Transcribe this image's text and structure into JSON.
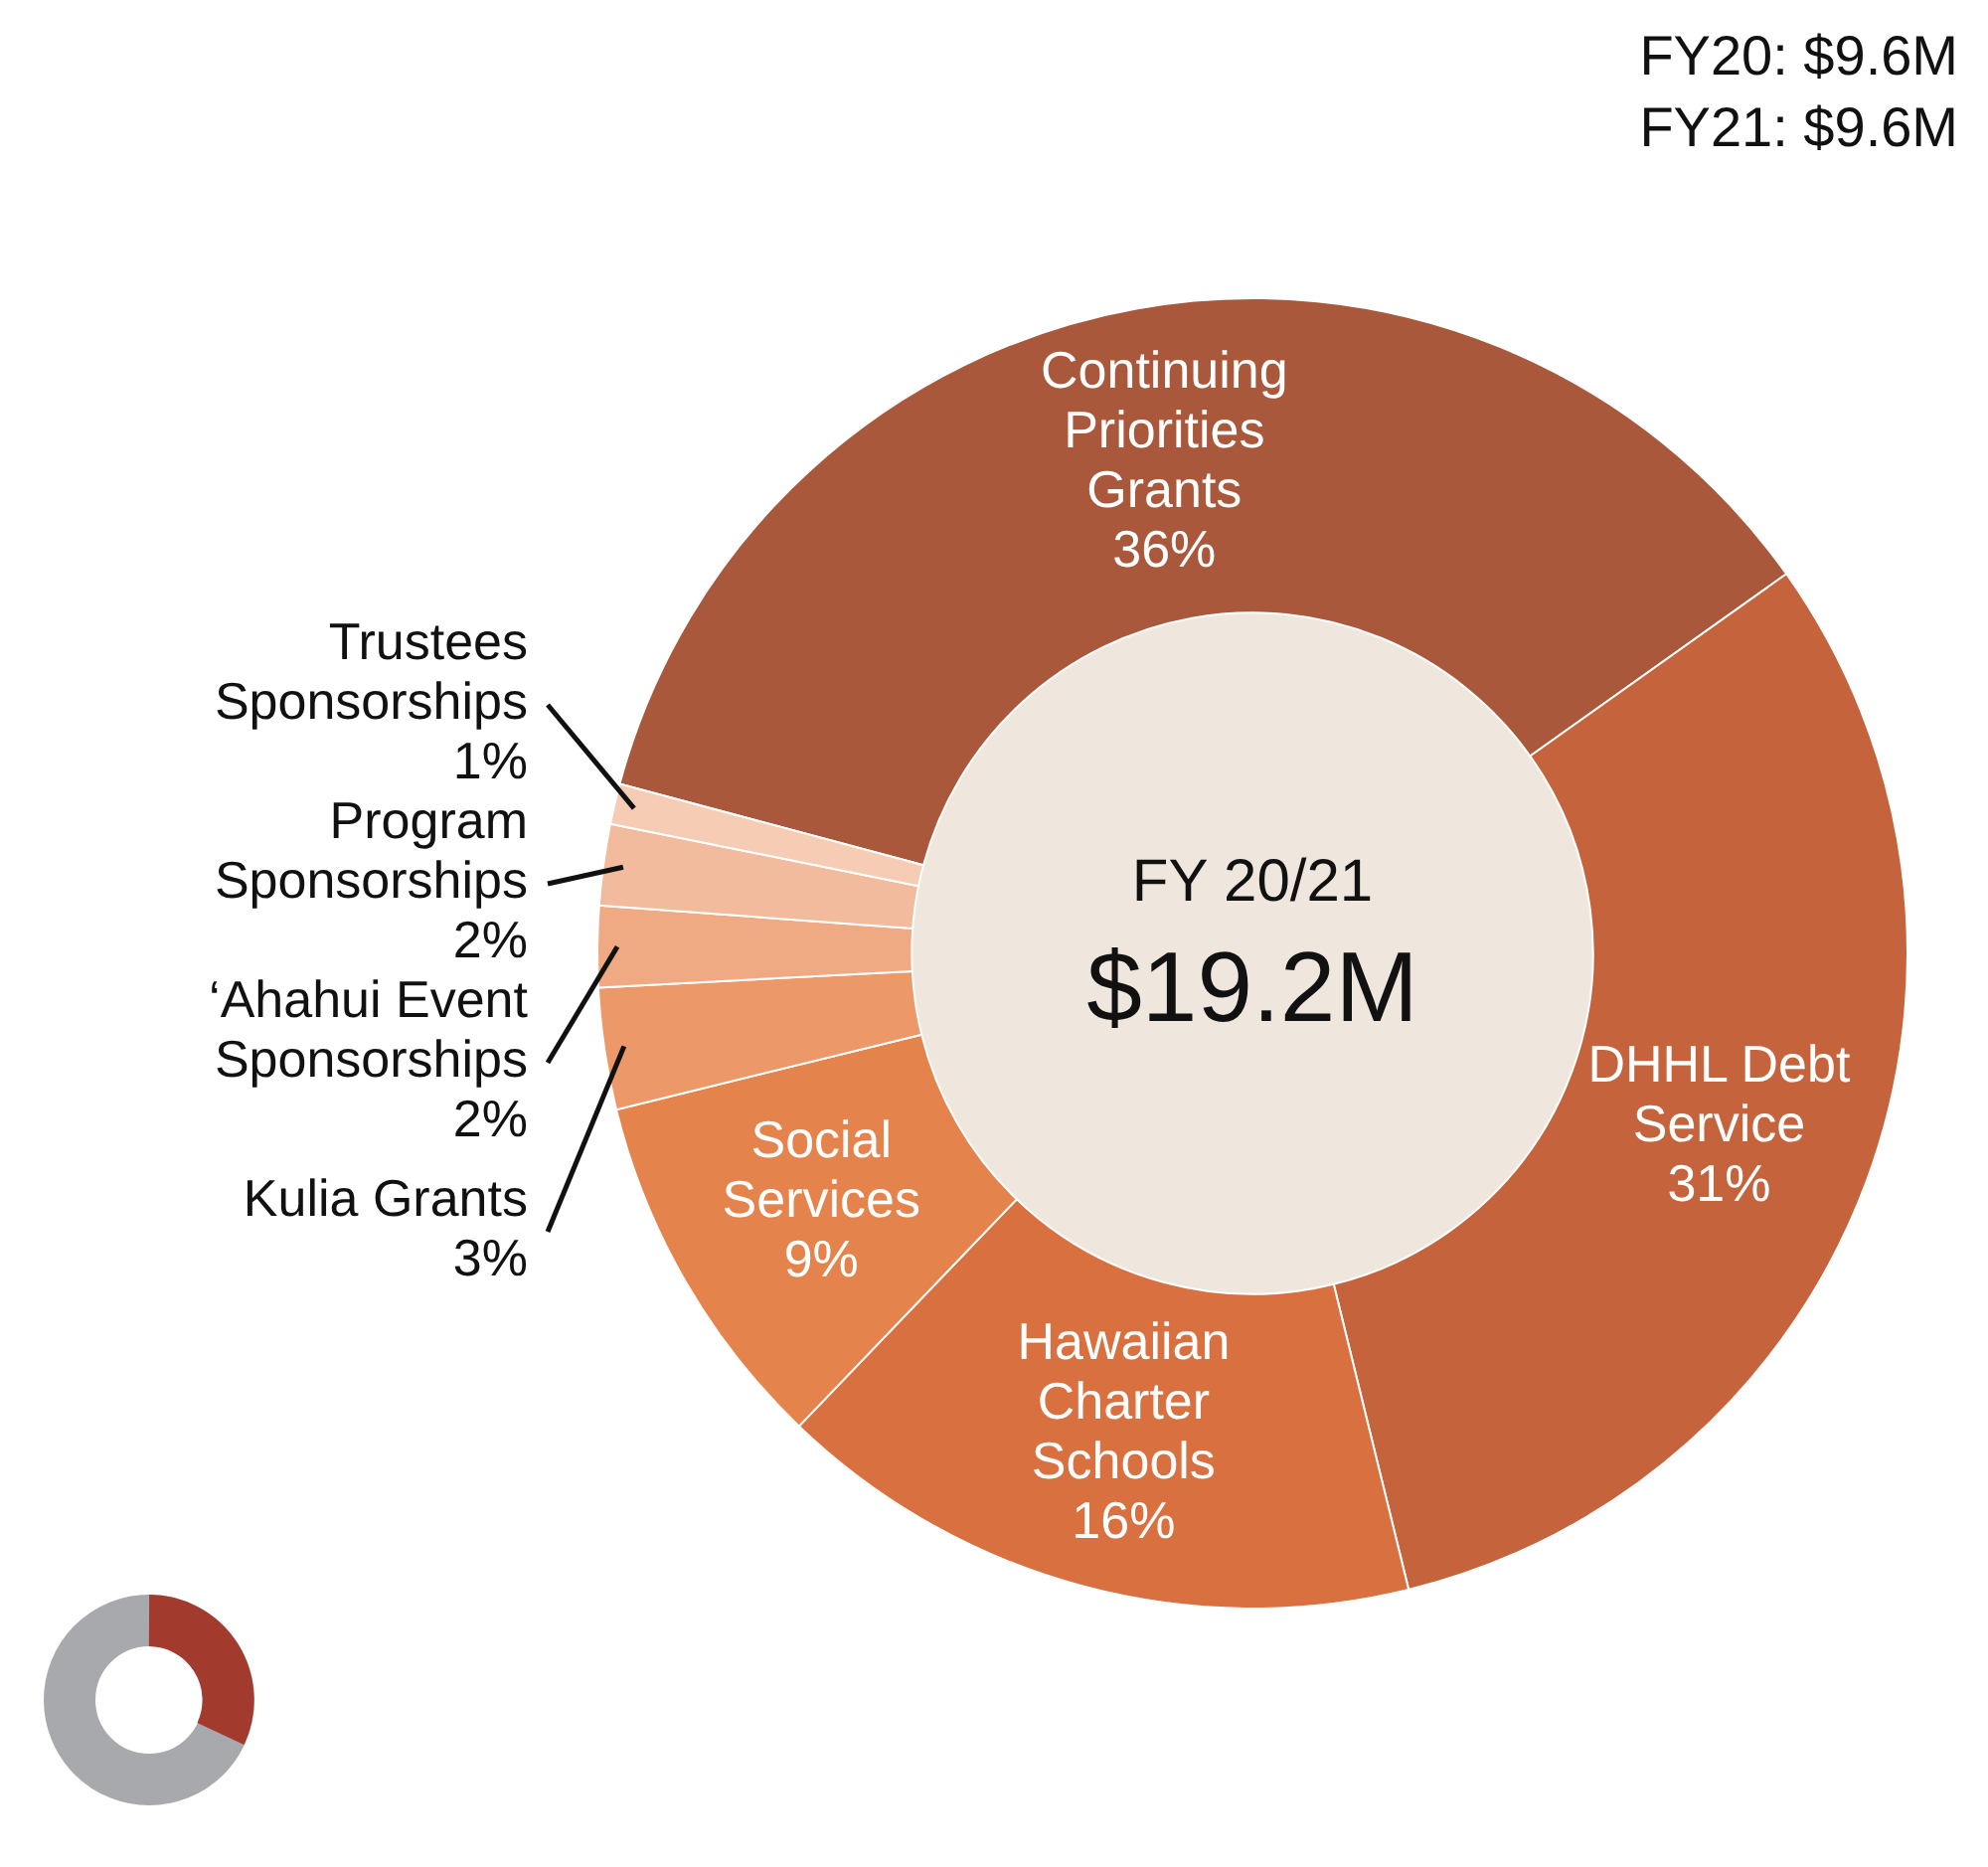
{
  "chart_data": {
    "type": "donut",
    "categories": [
      "Continuing Priorities Grants",
      "DHHL Debt Service",
      "Hawaiian Charter Schools",
      "Social Services",
      "Kulia Grants",
      "‘Ahahui Event Sponsorships",
      "Program Sponsorships",
      "Trustees Sponsorships"
    ],
    "values": [
      36,
      31,
      16,
      9,
      3,
      2,
      2,
      1
    ],
    "value_labels": [
      "36%",
      "31%",
      "16%",
      "9%",
      "3%",
      "2%",
      "2%",
      "1%"
    ],
    "colors": [
      "#a9583b",
      "#c5643c",
      "#d8703f",
      "#e5834d",
      "#ec9868",
      "#f0aa83",
      "#f3bb9d",
      "#f6ccb4"
    ],
    "annotations": [
      "FY 20/21",
      "$19.2M",
      "FY20: $9.6M",
      "FY21: $9.6M"
    ],
    "legend": false
  }
}
